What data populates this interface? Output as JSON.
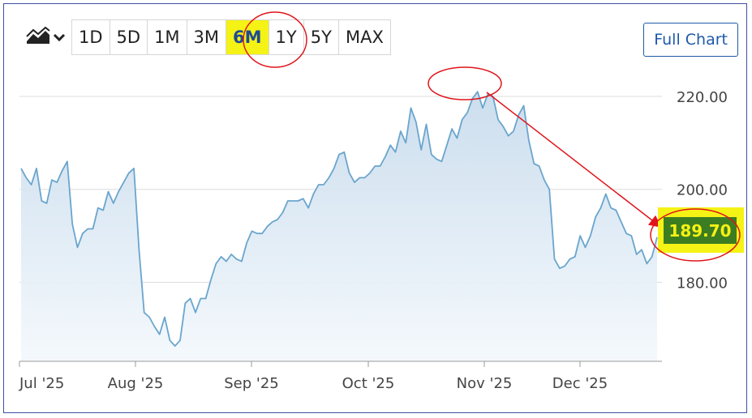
{
  "toolbar": {
    "chart_type_icon": "area-chart-icon",
    "ranges": [
      "1D",
      "5D",
      "1M",
      "3M",
      "6M",
      "1Y",
      "5Y",
      "MAX"
    ],
    "active_range": "6M",
    "full_chart_label": "Full Chart"
  },
  "price_label": "189.70",
  "colors": {
    "line": "#6aa5cd",
    "area_top": "#c9dced",
    "highlight": "#f5f215",
    "price_bg": "#3d7d21",
    "annotation": "#e0141a",
    "button_blue": "#1e5aa8"
  },
  "chart_data": {
    "type": "area",
    "x_tick_labels": [
      "Jul '25",
      "Aug '25",
      "Sep '25",
      "Oct '25",
      "Nov '25",
      "Dec '25"
    ],
    "y_tick_labels": [
      "220.00",
      "200.00",
      "180.00"
    ],
    "y_ticks": [
      220,
      200,
      180
    ],
    "ylim": [
      163,
      224
    ],
    "grid": true,
    "current_value": 189.7,
    "series": [
      {
        "values": [
          204.5,
          202.5,
          201,
          204.5,
          197.5,
          197,
          202,
          201.5,
          204,
          206,
          192.5,
          187.5,
          190.5,
          191.5,
          191.5,
          196,
          195.5,
          199.5,
          197,
          199.5,
          201.5,
          203.5,
          204.5,
          187,
          173.5,
          172.5,
          170.5,
          168.8,
          172.5,
          167.5,
          166.3,
          167.5,
          175.5,
          176.5,
          173.5,
          176.5,
          176.5,
          180.5,
          184,
          185.5,
          184.5,
          186,
          185,
          184.5,
          188.5,
          191,
          190.5,
          190.5,
          192,
          193,
          193.5,
          195,
          197.5,
          197.5,
          197.5,
          198,
          196,
          199,
          201,
          201,
          202.5,
          204.5,
          207.5,
          208,
          203.5,
          201.5,
          202.5,
          202.5,
          203.5,
          205,
          205,
          207,
          209.5,
          208,
          212.5,
          210,
          217.5,
          214.5,
          208.5,
          214,
          207.5,
          206.5,
          206,
          209.5,
          213,
          211,
          215,
          216.5,
          219.5,
          221,
          217.5,
          220.5,
          220,
          215,
          213.5,
          211.5,
          212.5,
          216,
          218,
          210.5,
          205.5,
          205,
          202,
          200,
          185,
          183,
          183.5,
          185,
          185.5,
          190,
          187.5,
          190,
          194,
          196,
          199,
          196,
          195.5,
          193,
          190.5,
          190,
          186,
          187,
          184,
          185.5,
          189.7
        ]
      }
    ]
  }
}
